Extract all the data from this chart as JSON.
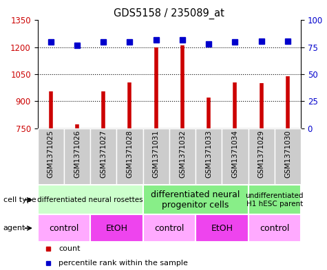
{
  "title": "GDS5158 / 235089_at",
  "samples": [
    "GSM1371025",
    "GSM1371026",
    "GSM1371027",
    "GSM1371028",
    "GSM1371031",
    "GSM1371032",
    "GSM1371033",
    "GSM1371034",
    "GSM1371029",
    "GSM1371030"
  ],
  "counts": [
    955,
    770,
    955,
    1005,
    1200,
    1210,
    920,
    1005,
    1000,
    1040
  ],
  "percentiles": [
    1228,
    1210,
    1228,
    1228,
    1240,
    1240,
    1218,
    1228,
    1232,
    1232
  ],
  "ylim_left": [
    750,
    1350
  ],
  "ylim_right": [
    0,
    100
  ],
  "yticks_left": [
    750,
    900,
    1050,
    1200,
    1350
  ],
  "yticks_right": [
    0,
    25,
    50,
    75,
    100
  ],
  "bar_color": "#cc0000",
  "dot_color": "#0000cc",
  "cell_type_groups": [
    {
      "label": "differentiated neural rosettes",
      "start": 0,
      "end": 4,
      "color": "#ccffcc",
      "fontsize": 7.5
    },
    {
      "label": "differentiated neural\nprogenitor cells",
      "start": 4,
      "end": 8,
      "color": "#88ee88",
      "fontsize": 9
    },
    {
      "label": "undifferentiated\nH1 hESC parent",
      "start": 8,
      "end": 10,
      "color": "#88ee88",
      "fontsize": 7.5
    }
  ],
  "agent_groups": [
    {
      "label": "control",
      "start": 0,
      "end": 2,
      "color": "#ffaaff"
    },
    {
      "label": "EtOH",
      "start": 2,
      "end": 4,
      "color": "#ee44ee"
    },
    {
      "label": "control",
      "start": 4,
      "end": 6,
      "color": "#ffaaff"
    },
    {
      "label": "EtOH",
      "start": 6,
      "end": 8,
      "color": "#ee44ee"
    },
    {
      "label": "control",
      "start": 8,
      "end": 10,
      "color": "#ffaaff"
    }
  ]
}
